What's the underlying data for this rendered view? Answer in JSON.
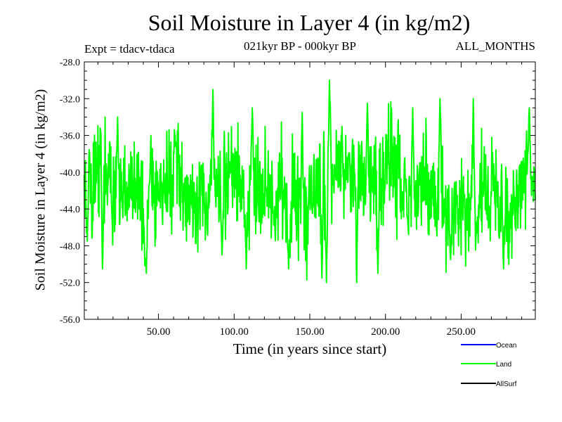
{
  "chart_data": {
    "type": "line",
    "title": "Soil Moisture in Layer 4 (in kg/m2)",
    "subtitle_left": "Expt = tdacv-tdaca",
    "subtitle_center": "021kyr BP - 000kyr BP",
    "subtitle_right": "ALL_MONTHS",
    "xlabel": "Time (in years since start)",
    "ylabel": "Soil Moisture in Layer 4 (in kg/m2)",
    "xlim": [
      1,
      299
    ],
    "ylim": [
      -56.0,
      -28.0
    ],
    "x_ticks": [
      50,
      100,
      150,
      200,
      250
    ],
    "x_tick_labels": [
      "50.00",
      "100.00",
      "150.00",
      "200.00",
      "250.00"
    ],
    "y_ticks": [
      -28,
      -32,
      -36,
      -40,
      -44,
      -48,
      -52,
      -56
    ],
    "y_tick_labels": [
      "-28.0",
      "-32.0",
      "-36.0",
      "-40.0",
      "-44.0",
      "-48.0",
      "-52.0",
      "-56.0"
    ],
    "grid": false,
    "legend_position": "bottom-right",
    "series": [
      {
        "name": "Ocean",
        "color": "#0000ff",
        "values": []
      },
      {
        "name": "Land",
        "color": "#00ff00",
        "x_start": 1,
        "x_step": 0.25,
        "mean": -41.8,
        "approx_min": -52.0,
        "approx_max": -30.0,
        "peaks": [
          {
            "x": 4,
            "y": -36.5
          },
          {
            "x": 12,
            "y": -33.0
          },
          {
            "x": 23,
            "y": -34.0
          },
          {
            "x": 45,
            "y": -36.0
          },
          {
            "x": 61,
            "y": -36.0
          },
          {
            "x": 86,
            "y": -31.0
          },
          {
            "x": 112,
            "y": -33.0
          },
          {
            "x": 145,
            "y": -33.5
          },
          {
            "x": 163,
            "y": -30.0
          },
          {
            "x": 188,
            "y": -32.5
          },
          {
            "x": 218,
            "y": -33.0
          },
          {
            "x": 236,
            "y": -32.0
          },
          {
            "x": 258,
            "y": -32.0
          },
          {
            "x": 295,
            "y": -33.0
          }
        ],
        "troughs": [
          {
            "x": 3,
            "y": -47.5
          },
          {
            "x": 13,
            "y": -50.5
          },
          {
            "x": 41,
            "y": -50.0
          },
          {
            "x": 42,
            "y": -51.0
          },
          {
            "x": 92,
            "y": -49.0
          },
          {
            "x": 108,
            "y": -50.5
          },
          {
            "x": 136,
            "y": -50.5
          },
          {
            "x": 158,
            "y": -51.5
          },
          {
            "x": 161,
            "y": -52.0
          },
          {
            "x": 181,
            "y": -52.0
          },
          {
            "x": 195,
            "y": -51.0
          },
          {
            "x": 243,
            "y": -49.5
          },
          {
            "x": 278,
            "y": -50.5
          }
        ]
      },
      {
        "name": "AllSurf",
        "color": "#000000",
        "values": []
      }
    ]
  }
}
